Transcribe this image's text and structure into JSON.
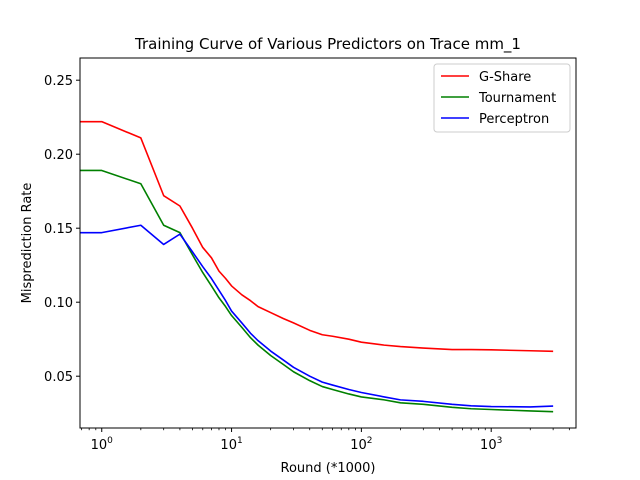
{
  "chart_data": {
    "type": "line",
    "title": "Training Curve of Various Predictors on Trace mm_1",
    "xlabel": "Round (*1000)",
    "ylabel": "Misprediction Rate",
    "xscale": "log",
    "xlim": [
      0.68,
      4500
    ],
    "ylim": [
      0.015,
      0.265
    ],
    "xticks": [
      {
        "value": 1,
        "base": "10",
        "exp": "0"
      },
      {
        "value": 10,
        "base": "10",
        "exp": "1"
      },
      {
        "value": 100,
        "base": "10",
        "exp": "2"
      },
      {
        "value": 1000,
        "base": "10",
        "exp": "3"
      }
    ],
    "yticks": [
      {
        "value": 0.05,
        "label": "0.05"
      },
      {
        "value": 0.1,
        "label": "0.10"
      },
      {
        "value": 0.15,
        "label": "0.15"
      },
      {
        "value": 0.2,
        "label": "0.20"
      },
      {
        "value": 0.25,
        "label": "0.25"
      }
    ],
    "legend_position": "top-right",
    "grid": false,
    "series": [
      {
        "name": "G-Share",
        "color": "#ff0000",
        "points": [
          [
            0.5,
            0.222
          ],
          [
            1,
            0.222
          ],
          [
            2,
            0.211
          ],
          [
            3,
            0.172
          ],
          [
            4,
            0.165
          ],
          [
            5,
            0.15
          ],
          [
            6,
            0.137
          ],
          [
            7,
            0.13
          ],
          [
            8,
            0.121
          ],
          [
            9,
            0.116
          ],
          [
            10,
            0.111
          ],
          [
            12,
            0.105
          ],
          [
            14,
            0.101
          ],
          [
            16,
            0.097
          ],
          [
            20,
            0.093
          ],
          [
            25,
            0.089
          ],
          [
            30,
            0.086
          ],
          [
            40,
            0.081
          ],
          [
            50,
            0.078
          ],
          [
            60,
            0.077
          ],
          [
            80,
            0.075
          ],
          [
            100,
            0.073
          ],
          [
            150,
            0.071
          ],
          [
            200,
            0.07
          ],
          [
            300,
            0.069
          ],
          [
            500,
            0.068
          ],
          [
            700,
            0.068
          ],
          [
            1000,
            0.0678
          ],
          [
            2000,
            0.0672
          ],
          [
            3000,
            0.0668
          ]
        ]
      },
      {
        "name": "Tournament",
        "color": "#008000",
        "points": [
          [
            0.5,
            0.189
          ],
          [
            1,
            0.189
          ],
          [
            2,
            0.18
          ],
          [
            3,
            0.152
          ],
          [
            4,
            0.147
          ],
          [
            5,
            0.132
          ],
          [
            6,
            0.12
          ],
          [
            7,
            0.111
          ],
          [
            8,
            0.103
          ],
          [
            9,
            0.097
          ],
          [
            10,
            0.091
          ],
          [
            12,
            0.083
          ],
          [
            14,
            0.076
          ],
          [
            16,
            0.071
          ],
          [
            20,
            0.064
          ],
          [
            25,
            0.058
          ],
          [
            30,
            0.053
          ],
          [
            40,
            0.047
          ],
          [
            50,
            0.043
          ],
          [
            60,
            0.041
          ],
          [
            80,
            0.038
          ],
          [
            100,
            0.036
          ],
          [
            150,
            0.034
          ],
          [
            200,
            0.032
          ],
          [
            300,
            0.031
          ],
          [
            500,
            0.029
          ],
          [
            700,
            0.028
          ],
          [
            1000,
            0.0275
          ],
          [
            2000,
            0.0265
          ],
          [
            3000,
            0.026
          ]
        ]
      },
      {
        "name": "Perceptron",
        "color": "#0000ff",
        "points": [
          [
            0.5,
            0.147
          ],
          [
            1,
            0.147
          ],
          [
            2,
            0.152
          ],
          [
            3,
            0.139
          ],
          [
            4,
            0.146
          ],
          [
            5,
            0.134
          ],
          [
            6,
            0.124
          ],
          [
            7,
            0.116
          ],
          [
            8,
            0.108
          ],
          [
            9,
            0.101
          ],
          [
            10,
            0.094
          ],
          [
            12,
            0.086
          ],
          [
            14,
            0.079
          ],
          [
            16,
            0.074
          ],
          [
            20,
            0.067
          ],
          [
            25,
            0.061
          ],
          [
            30,
            0.056
          ],
          [
            40,
            0.05
          ],
          [
            50,
            0.046
          ],
          [
            60,
            0.044
          ],
          [
            80,
            0.041
          ],
          [
            100,
            0.039
          ],
          [
            150,
            0.036
          ],
          [
            200,
            0.034
          ],
          [
            300,
            0.033
          ],
          [
            500,
            0.031
          ],
          [
            700,
            0.03
          ],
          [
            1000,
            0.0295
          ],
          [
            2000,
            0.0292
          ],
          [
            3000,
            0.0298
          ]
        ]
      }
    ]
  }
}
